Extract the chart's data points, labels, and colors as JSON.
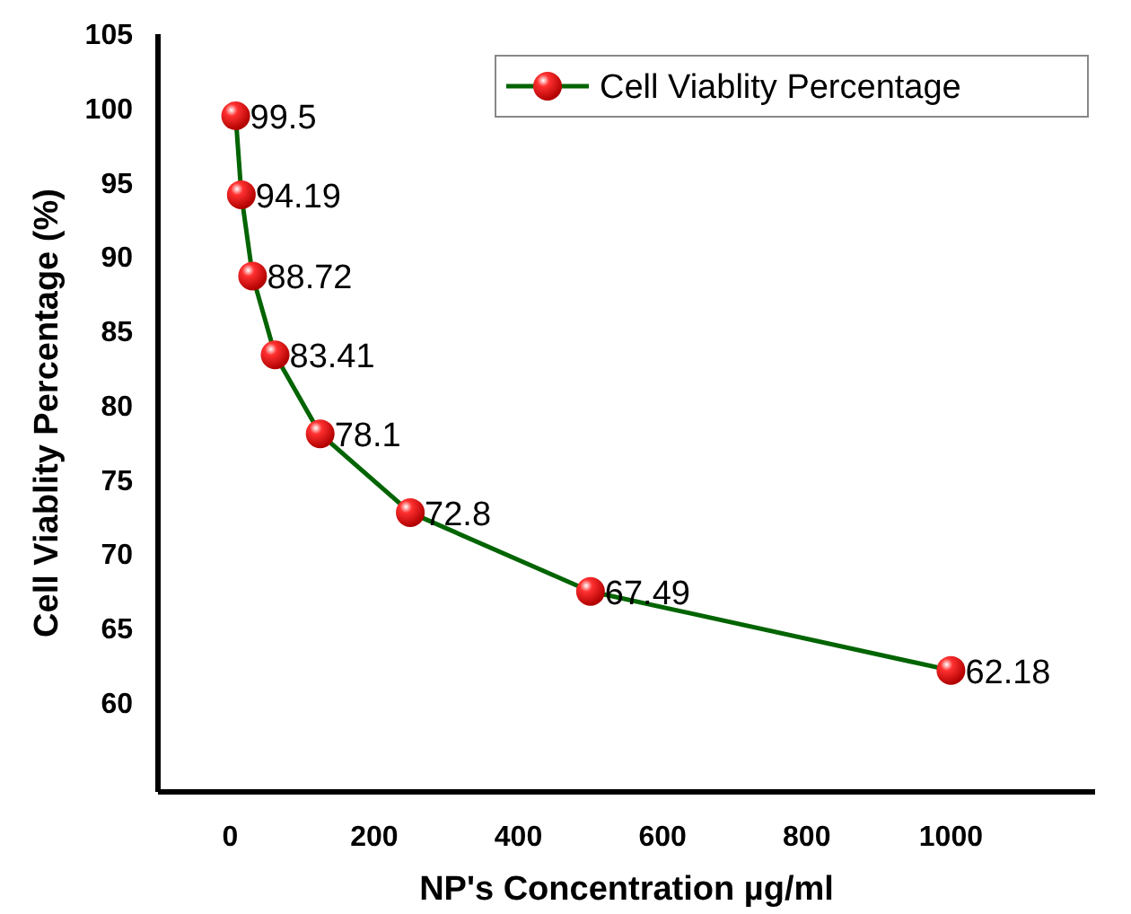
{
  "chart_data": {
    "type": "line",
    "xlabel": "NP's Concentration µg/ml",
    "ylabel": "Cell Viablity Percentage (%)",
    "x": [
      7.81,
      15.62,
      31.25,
      62.5,
      125,
      250,
      500,
      1000
    ],
    "series": [
      {
        "name": "Cell Viablity Percentage",
        "color": "#006400",
        "values": [
          99.5,
          94.19,
          88.72,
          83.41,
          78.1,
          72.8,
          67.49,
          62.18
        ]
      }
    ],
    "xlim": [
      -100,
      1200
    ],
    "xticks": [
      0,
      200,
      400,
      600,
      800,
      1000
    ],
    "ylim": [
      54,
      105
    ],
    "yticks": [
      60,
      65,
      70,
      75,
      80,
      85,
      90,
      95,
      100,
      105
    ],
    "marker": "circle",
    "line_style": "solid",
    "legend": "top right",
    "data_labels": true,
    "grid": false
  }
}
